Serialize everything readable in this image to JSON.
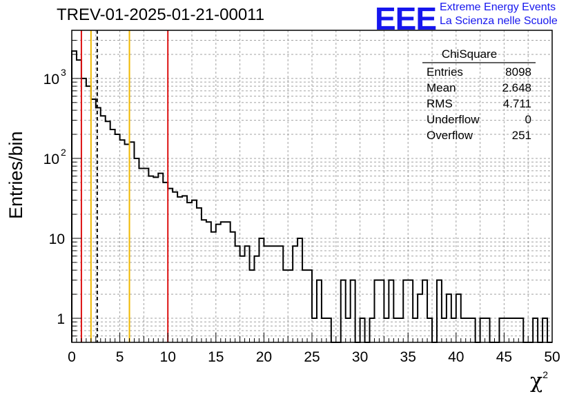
{
  "chart_data": {
    "type": "bar",
    "title": "TREV-01-2025-01-21-00011",
    "xlabel": "χ",
    "xlabel_exponent": "2",
    "ylabel": "Entries/bin",
    "xlim": [
      0,
      50
    ],
    "ylim": [
      0.5,
      4000
    ],
    "yscale": "log",
    "grid": true,
    "bin_width": 0.5,
    "x_ticks": [
      "0",
      "5",
      "10",
      "15",
      "20",
      "25",
      "30",
      "35",
      "40",
      "45",
      "50"
    ],
    "y_ticks": [
      {
        "value": 1,
        "label": "1"
      },
      {
        "value": 10,
        "label": "10"
      },
      {
        "value": 100,
        "label": "10",
        "exp": "2"
      },
      {
        "value": 1000,
        "label": "10",
        "exp": "3"
      }
    ],
    "values": [
      2200,
      1700,
      1000,
      800,
      550,
      430,
      340,
      290,
      230,
      200,
      170,
      150,
      160,
      100,
      75,
      75,
      60,
      58,
      65,
      50,
      42,
      38,
      33,
      34,
      28,
      30,
      24,
      17,
      16,
      12,
      15,
      16,
      16,
      12,
      8,
      6,
      8,
      4,
      6,
      10,
      8,
      8,
      8,
      8,
      4,
      4,
      8,
      10,
      4,
      4,
      1,
      3,
      1,
      1,
      0.4,
      0.4,
      3,
      1,
      3,
      0.4,
      1,
      0.4,
      1,
      3,
      3,
      1,
      3,
      1,
      1,
      3,
      3,
      1,
      2,
      3,
      1,
      0.4,
      3,
      1,
      2,
      1,
      2,
      1,
      1,
      1,
      0.4,
      1,
      1,
      0.4,
      0.4,
      1,
      1,
      1,
      1,
      1,
      0.4,
      0.4,
      1,
      0.4,
      1,
      0.4
    ],
    "vertical_lines": [
      {
        "x": 1,
        "color": "#dd1111",
        "style": "solid"
      },
      {
        "x": 2,
        "color": "#f0b800",
        "style": "solid"
      },
      {
        "x": 2.648,
        "color": "#000000",
        "style": "dashed"
      },
      {
        "x": 6,
        "color": "#f0b800",
        "style": "solid"
      },
      {
        "x": 10,
        "color": "#dd1111",
        "style": "solid"
      }
    ],
    "stats": {
      "title": "ChiSquare",
      "rows": [
        {
          "label": "Entries",
          "value": "8098"
        },
        {
          "label": "Mean",
          "value": "2.648"
        },
        {
          "label": "RMS",
          "value": "4.711"
        },
        {
          "label": "Underflow",
          "value": "0"
        },
        {
          "label": "Overflow",
          "value": "251"
        }
      ]
    }
  },
  "logo": {
    "mark": "EEE",
    "line1": "Extreme Energy Events",
    "line2": "La Scienza nelle Scuole"
  }
}
